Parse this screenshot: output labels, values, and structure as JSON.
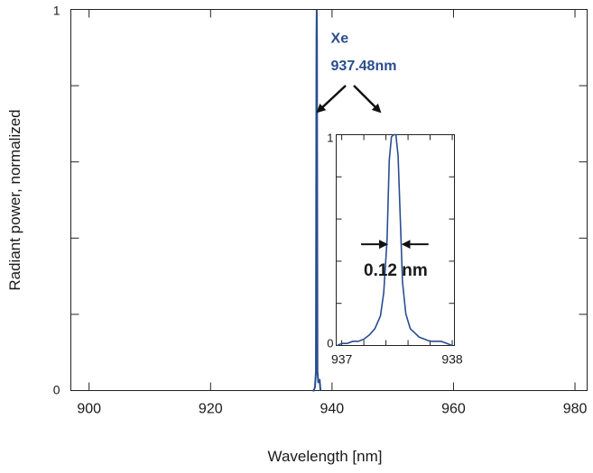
{
  "chart_data": [
    {
      "id": "main",
      "type": "line",
      "title": "",
      "xlabel": "Wavelength [nm]",
      "ylabel": "Radiant power, normalized",
      "xlim": [
        897,
        982
      ],
      "ylim": [
        0,
        1
      ],
      "x_ticks": [
        900,
        920,
        940,
        960,
        980
      ],
      "y_ticks": [
        0,
        1
      ],
      "x_tick_labels": [
        "900",
        "920",
        "940",
        "960",
        "980"
      ],
      "y_tick_labels": [
        "0",
        "1"
      ],
      "grid": false,
      "series": [
        {
          "name": "Xe",
          "color": "#2a4d8f",
          "x": [
            936.8,
            937.0,
            937.2,
            937.35,
            937.44,
            937.48,
            937.52,
            937.6,
            937.75,
            937.95,
            938.1
          ],
          "y": [
            0.0,
            0.0,
            0.01,
            0.05,
            0.92,
            1.0,
            0.92,
            0.05,
            0.02,
            0.03,
            0.0
          ]
        }
      ],
      "annotations": [
        {
          "text": "Xe",
          "x": 939.8,
          "y": 0.913
        },
        {
          "text": "937.48nm",
          "x": 939.8,
          "y": 0.84
        }
      ]
    },
    {
      "id": "inset",
      "type": "line",
      "title": "",
      "xlim": [
        936.95,
        938.02
      ],
      "ylim": [
        0,
        1
      ],
      "x_ticks": [
        937,
        938
      ],
      "y_ticks": [
        0,
        1
      ],
      "x_tick_labels": [
        "937",
        "938"
      ],
      "y_tick_labels": [
        "0",
        "1"
      ],
      "grid": false,
      "series": [
        {
          "name": "Xe 937.48nm (zoom)",
          "color": "#2a4d8f",
          "x": [
            936.96,
            937.0,
            937.05,
            937.1,
            937.15,
            937.2,
            937.25,
            937.3,
            937.35,
            937.38,
            937.41,
            937.43,
            937.45,
            937.47,
            937.49,
            937.51,
            937.53,
            937.55,
            937.58,
            937.62,
            937.66,
            937.7,
            937.75,
            937.8,
            937.85,
            937.9,
            937.95,
            938.0
          ],
          "y": [
            0.0,
            0.01,
            0.01,
            0.02,
            0.02,
            0.03,
            0.05,
            0.08,
            0.14,
            0.25,
            0.5,
            0.88,
            0.99,
            1.0,
            1.0,
            0.9,
            0.6,
            0.3,
            0.15,
            0.08,
            0.06,
            0.04,
            0.03,
            0.02,
            0.02,
            0.02,
            0.01,
            0.0
          ]
        }
      ],
      "annotations": [
        {
          "text": "0.12 nm",
          "type": "fwhm",
          "x_left": 937.42,
          "x_right": 937.54,
          "y": 0.48
        }
      ]
    }
  ]
}
